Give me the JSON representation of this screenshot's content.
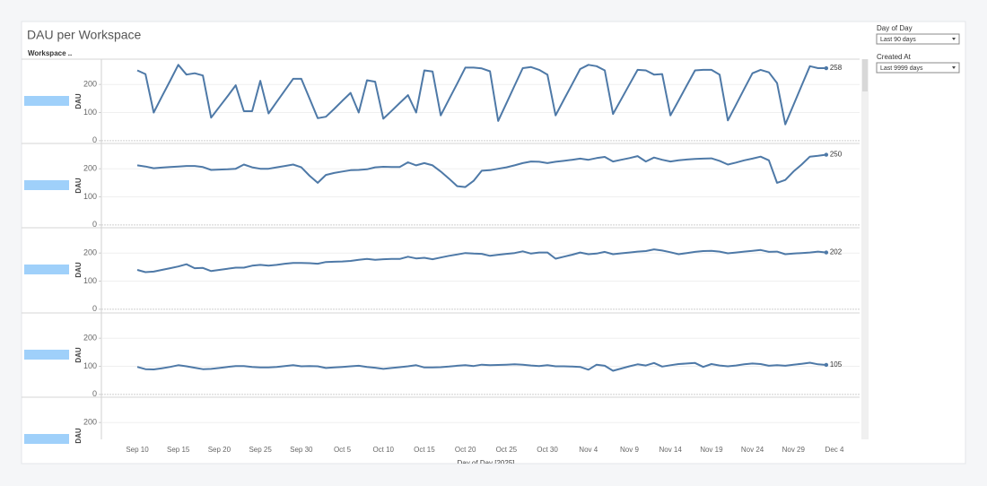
{
  "chart_data": {
    "type": "line",
    "title": "DAU per Workspace",
    "row_header": "Workspace ..",
    "y_label": "DAU",
    "x_label": "Day of Day [2025]",
    "color": "#4e79a7",
    "categories": [
      "Sep 10",
      null,
      null,
      null,
      null,
      "Sep 15",
      null,
      null,
      null,
      null,
      "Sep 20",
      null,
      null,
      null,
      null,
      "Sep 25",
      null,
      null,
      null,
      null,
      "Sep 30",
      null,
      null,
      null,
      null,
      "Oct 5",
      null,
      null,
      null,
      null,
      "Oct 10",
      null,
      null,
      null,
      null,
      "Oct 15",
      null,
      null,
      null,
      null,
      "Oct 20",
      null,
      null,
      null,
      null,
      "Oct 25",
      null,
      null,
      null,
      null,
      "Oct 30",
      null,
      null,
      null,
      null,
      "Nov 4",
      null,
      null,
      null,
      null,
      "Nov 9",
      null,
      null,
      null,
      null,
      "Nov 14",
      null,
      null,
      null,
      null,
      "Nov 19",
      null,
      null,
      null,
      null,
      "Nov 24",
      null,
      null,
      null,
      null,
      "Nov 29",
      null,
      null,
      null,
      null,
      "Dec 4"
    ],
    "ylim": [
      -10,
      290
    ],
    "yticks": [
      0,
      100,
      200
    ],
    "grid": true,
    "series": [
      {
        "values": [
          250,
          237,
          100,
          157,
          213,
          270,
          235,
          240,
          232,
          82,
          120,
          158,
          197,
          105,
          105,
          213,
          97,
          138,
          179,
          220,
          220,
          150,
          80,
          85,
          113,
          142,
          170,
          100,
          215,
          210,
          78,
          106,
          134,
          162,
          100,
          250,
          246,
          90,
          147,
          203,
          260,
          260,
          257,
          247,
          70,
          133,
          196,
          258,
          262,
          252,
          235,
          90,
          145,
          200,
          255,
          270,
          265,
          250,
          95,
          147,
          200,
          252,
          250,
          235,
          237,
          90,
          143,
          197,
          250,
          252,
          252,
          235,
          72,
          128,
          184,
          240,
          252,
          243,
          205,
          58,
          127,
          196,
          265,
          258,
          258,
          null
        ]
      },
      {
        "values": [
          212,
          208,
          202,
          204,
          206,
          208,
          210,
          210,
          206,
          196,
          197,
          198,
          200,
          215,
          205,
          200,
          200,
          205,
          210,
          215,
          205,
          175,
          150,
          178,
          185,
          190,
          195,
          196,
          198,
          205,
          207,
          206,
          206,
          223,
          212,
          220,
          212,
          190,
          165,
          138,
          135,
          157,
          193,
          195,
          200,
          205,
          212,
          220,
          226,
          225,
          220,
          225,
          228,
          232,
          236,
          232,
          238,
          242,
          226,
          232,
          238,
          245,
          226,
          240,
          232,
          226,
          230,
          233,
          235,
          236,
          237,
          228,
          215,
          222,
          230,
          236,
          243,
          230,
          150,
          160,
          190,
          215,
          243,
          246,
          250,
          null
        ]
      },
      {
        "values": [
          140,
          132,
          134,
          140,
          146,
          152,
          160,
          146,
          147,
          136,
          140,
          144,
          148,
          148,
          155,
          158,
          155,
          158,
          162,
          165,
          165,
          164,
          162,
          168,
          169,
          170,
          172,
          176,
          179,
          176,
          178,
          179,
          179,
          187,
          181,
          183,
          178,
          184,
          190,
          195,
          200,
          198,
          197,
          190,
          194,
          197,
          200,
          206,
          198,
          202,
          202,
          180,
          187,
          194,
          202,
          196,
          198,
          204,
          196,
          199,
          202,
          205,
          207,
          213,
          209,
          203,
          196,
          200,
          204,
          207,
          208,
          205,
          199,
          202,
          205,
          208,
          211,
          204,
          205,
          196,
          198,
          200,
          202,
          205,
          202,
          null
        ]
      },
      {
        "values": [
          98,
          90,
          89,
          93,
          98,
          104,
          100,
          95,
          90,
          91,
          94,
          98,
          101,
          101,
          98,
          96,
          96,
          98,
          101,
          104,
          100,
          101,
          100,
          94,
          96,
          98,
          100,
          102,
          98,
          95,
          91,
          94,
          97,
          100,
          104,
          96,
          96,
          97,
          99,
          102,
          104,
          101,
          106,
          104,
          105,
          106,
          107,
          106,
          103,
          101,
          104,
          100,
          100,
          99,
          98,
          88,
          106,
          102,
          84,
          92,
          100,
          107,
          103,
          112,
          99,
          104,
          108,
          110,
          112,
          98,
          108,
          103,
          100,
          103,
          107,
          110,
          108,
          102,
          104,
          102,
          106,
          109,
          113,
          107,
          105,
          null
        ]
      }
    ]
  },
  "filters": [
    {
      "label": "Day of Day",
      "value": "Last 90 days"
    },
    {
      "label": "Created At",
      "value": "Last 9999 days"
    }
  ]
}
